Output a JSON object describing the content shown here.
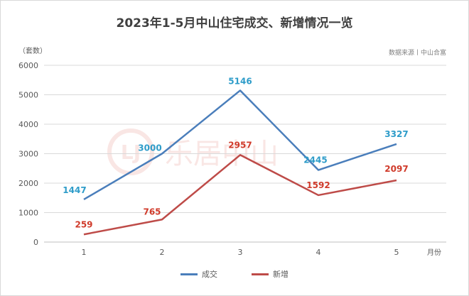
{
  "chart_data": {
    "type": "line",
    "title": "2023年1-5月中山住宅成交、新增情况一览",
    "ylabel": "（套数）",
    "xlabel": "月份",
    "source": "数据来源丨中山合富",
    "watermark": "乐居中山",
    "x": [
      "1",
      "2",
      "3",
      "4",
      "5"
    ],
    "ylim": [
      0,
      6000
    ],
    "yticks": [
      0,
      1000,
      2000,
      3000,
      4000,
      5000,
      6000
    ],
    "grid": true,
    "legend_position": "bottom",
    "series": [
      {
        "name": "成交",
        "color": "#4a7ebb",
        "label_color": "#2e9cc9",
        "values": [
          1447,
          3000,
          5146,
          2445,
          3327
        ]
      },
      {
        "name": "新增",
        "color": "#be4b48",
        "label_color": "#d03b2b",
        "values": [
          259,
          765,
          2957,
          1592,
          2097
        ]
      }
    ]
  }
}
